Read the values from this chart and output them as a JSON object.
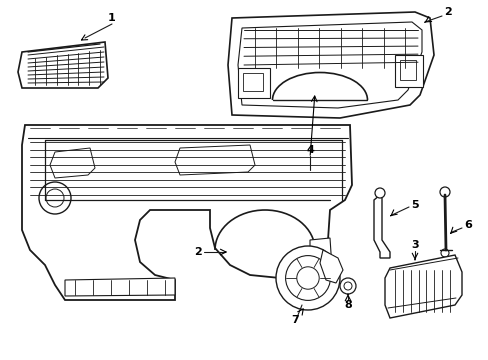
{
  "background_color": "#ffffff",
  "line_color": "#1a1a1a",
  "lw": 1.0,
  "fig_w": 4.89,
  "fig_h": 3.6,
  "dpi": 100
}
